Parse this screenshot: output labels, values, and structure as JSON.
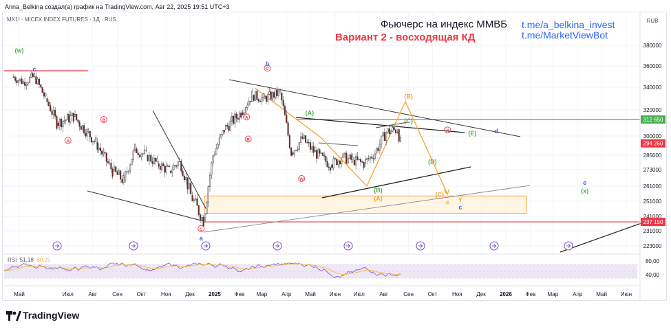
{
  "header": {
    "caption": "Anna_Belkina создал(а) график на TradingView.com, Авг 22, 2025 19:51 UTC+3"
  },
  "chart": {
    "symbol_line": "MX1! · MICEX INDEX FUTURES · 1Д · RUS",
    "title": "Фьючерс на индекс ММВБ",
    "subtitle": "Вариант 2 - восходящая КД",
    "link1": "t.me/a_belkina_invest",
    "link2": "t.me/MarketViewBot",
    "currency": "RUB"
  },
  "rsi": {
    "label": "RSI",
    "value1": "51,18",
    "value2": "60,25"
  },
  "footer": {
    "brand": "TradingView"
  },
  "colors": {
    "accent_blue": "#2962ff",
    "red": "#f23645",
    "green": "#4caf50",
    "orange": "#f7a531",
    "candle_up": "#26a69a",
    "candle_down": "#ef5350",
    "rsi_purple": "#7e57c2",
    "rsi_band": "#ede7f6"
  },
  "chart_data": {
    "type": "candlestick",
    "y_axis_ticks": [
      "380000",
      "360000",
      "340000",
      "320000",
      "300000",
      "285000",
      "273000",
      "261000",
      "251000",
      "241000",
      "231000",
      "223000"
    ],
    "y_axis_ticks_values": [
      380000,
      360000,
      340000,
      320000,
      300000,
      285000,
      273000,
      261000,
      251000,
      241000,
      231000,
      223000
    ],
    "price_labels": [
      {
        "text": "312 650",
        "value": 312650,
        "color": "#4caf50"
      },
      {
        "text": "294 250",
        "value": 294250,
        "color": "#f23645"
      },
      {
        "text": "237 150",
        "value": 237150,
        "color": "#f23645"
      }
    ],
    "rsi_ticks": [
      "80,00",
      "40,00"
    ],
    "rsi_ticks_values": [
      80,
      40
    ],
    "x_axis_labels": [
      "Май",
      "Июл",
      "Авг",
      "Сен",
      "Окт",
      "Ноя",
      "Дек",
      "2025",
      "Фев",
      "Мар",
      "Апр",
      "Май",
      "Июн",
      "Июл",
      "Авг",
      "Сен",
      "Окт",
      "Ноя",
      "Дек",
      "2026",
      "Фев",
      "Мар",
      "Апр",
      "Май",
      "Июн"
    ],
    "x_axis_bold": [
      "2025",
      "2026"
    ],
    "price_path": [
      [
        "2024-04-22",
        350000
      ],
      [
        "2024-05-06",
        345000
      ],
      [
        "2024-05-20",
        350000
      ],
      [
        "2024-06-03",
        330000
      ],
      [
        "2024-06-17",
        310000
      ],
      [
        "2024-07-08",
        315000
      ],
      [
        "2024-07-25",
        303000
      ],
      [
        "2024-08-05",
        295000
      ],
      [
        "2024-08-26",
        272000
      ],
      [
        "2024-09-09",
        265000
      ],
      [
        "2024-09-23",
        290000
      ],
      [
        "2024-10-07",
        285000
      ],
      [
        "2024-10-21",
        278000
      ],
      [
        "2024-11-05",
        272000
      ],
      [
        "2024-11-18",
        280000
      ],
      [
        "2024-12-02",
        255000
      ],
      [
        "2024-12-18",
        238000
      ],
      [
        "2024-12-30",
        285000
      ],
      [
        "2025-01-13",
        305000
      ],
      [
        "2025-02-03",
        318000
      ],
      [
        "2025-02-17",
        333000
      ],
      [
        "2025-03-03",
        330000
      ],
      [
        "2025-03-24",
        335000
      ],
      [
        "2025-04-07",
        287000
      ],
      [
        "2025-04-21",
        298000
      ],
      [
        "2025-05-05",
        288000
      ],
      [
        "2025-05-26",
        277000
      ],
      [
        "2025-06-09",
        283000
      ],
      [
        "2025-06-23",
        281000
      ],
      [
        "2025-07-07",
        278000
      ],
      [
        "2025-07-21",
        287000
      ],
      [
        "2025-08-04",
        303000
      ],
      [
        "2025-08-18",
        305000
      ],
      [
        "2025-08-22",
        295000
      ]
    ],
    "wave_labels": [
      {
        "text": "(w)",
        "color": "#4caf50",
        "date": "2024-05-01",
        "value": 373000
      },
      {
        "text": "c",
        "color": "#2962ff",
        "date": "2024-05-20",
        "value": 355000
      },
      {
        "text": "A",
        "color": "#f23645",
        "date": "2024-07-01",
        "value": 295000
      },
      {
        "text": "B",
        "color": "#f23645",
        "date": "2024-08-15",
        "value": 311000
      },
      {
        "text": "C",
        "color": "#f23645",
        "date": "2024-12-15",
        "value": 231000
      },
      {
        "text": "a",
        "color": "#2962ff",
        "date": "2024-12-15",
        "value": 226000
      },
      {
        "text": "A",
        "color": "#f23645",
        "date": "2025-02-10",
        "value": 313000
      },
      {
        "text": "B",
        "color": "#f23645",
        "date": "2025-02-12",
        "value": 296000
      },
      {
        "text": "b",
        "color": "#2962ff",
        "date": "2025-03-08",
        "value": 360000
      },
      {
        "text": "C",
        "color": "#f23645",
        "date": "2025-03-08",
        "value": 356000
      },
      {
        "text": "W",
        "color": "#f23645",
        "date": "2025-04-20",
        "value": 265000
      },
      {
        "text": "(A)",
        "color": "#4caf50",
        "date": "2025-04-30",
        "value": 316000
      },
      {
        "text": "(B)",
        "color": "#4caf50",
        "date": "2025-07-25",
        "value": 257000
      },
      {
        "text": "(A)",
        "color": "#f7a531",
        "date": "2025-07-25",
        "value": 251500
      },
      {
        "text": "(B)",
        "color": "#f7a531",
        "date": "2025-09-01",
        "value": 330000
      },
      {
        "text": "(C)",
        "color": "#4caf50",
        "date": "2025-09-01",
        "value": 310000
      },
      {
        "text": "(D)",
        "color": "#4caf50",
        "date": "2025-10-01",
        "value": 278000
      },
      {
        "text": "X",
        "color": "#f23645",
        "date": "2025-10-20",
        "value": 303000
      },
      {
        "text": "(E)",
        "color": "#4caf50",
        "date": "2025-11-20",
        "value": 300500
      },
      {
        "text": "d",
        "color": "#2962ff",
        "date": "2025-12-20",
        "value": 302000
      },
      {
        "text": "(C)",
        "color": "#f7a531",
        "date": "2025-10-10",
        "value": 254000
      },
      {
        "text": "c",
        "color": "#f7a531",
        "date": "2025-10-20",
        "value": 249000
      },
      {
        "text": "Y",
        "color": "#f7a531",
        "date": "2025-11-05",
        "value": 250500
      },
      {
        "text": "c",
        "color": "#2962ff",
        "date": "2025-11-05",
        "value": 245500
      },
      {
        "text": "e",
        "color": "#2962ff",
        "date": "2026-04-10",
        "value": 262000
      },
      {
        "text": "(x)",
        "color": "#4caf50",
        "date": "2026-04-10",
        "value": 256500
      }
    ]
  }
}
